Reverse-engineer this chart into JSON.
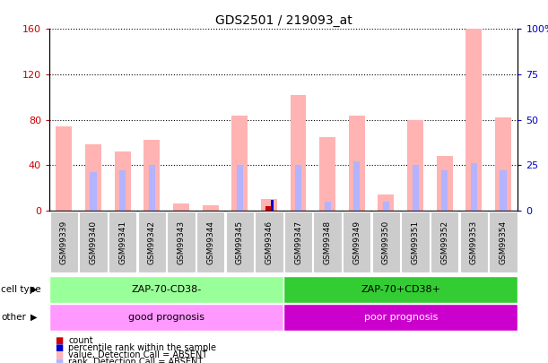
{
  "title": "GDS2501 / 219093_at",
  "samples": [
    "GSM99339",
    "GSM99340",
    "GSM99341",
    "GSM99342",
    "GSM99343",
    "GSM99344",
    "GSM99345",
    "GSM99346",
    "GSM99347",
    "GSM99348",
    "GSM99349",
    "GSM99350",
    "GSM99351",
    "GSM99352",
    "GSM99353",
    "GSM99354"
  ],
  "count_values": [
    0,
    0,
    0,
    0,
    0,
    0,
    0,
    4,
    0,
    0,
    0,
    0,
    0,
    0,
    0,
    0
  ],
  "rank_values_pct": [
    0,
    0,
    0,
    0,
    0,
    0,
    0,
    6,
    0,
    0,
    0,
    0,
    0,
    0,
    0,
    0
  ],
  "absent_values": [
    74,
    58,
    52,
    62,
    6,
    5,
    84,
    10,
    102,
    65,
    84,
    14,
    80,
    48,
    160,
    82
  ],
  "absent_rank_pct": [
    0,
    21,
    22,
    25,
    0,
    0,
    25,
    0,
    25,
    5,
    27,
    5,
    25,
    22,
    26,
    22
  ],
  "group1_count": 8,
  "group1_label": "ZAP-70-CD38-",
  "group2_label": "ZAP-70+CD38+",
  "other1_label": "good prognosis",
  "other2_label": "poor prognosis",
  "cell_type_label": "cell type",
  "other_label": "other",
  "ylim_left": [
    0,
    160
  ],
  "ylim_right": [
    0,
    100
  ],
  "yticks_left": [
    0,
    40,
    80,
    120,
    160
  ],
  "ytick_labels_left": [
    "0",
    "40",
    "80",
    "120",
    "160"
  ],
  "yticks_right": [
    0,
    25,
    50,
    75,
    100
  ],
  "ytick_labels_right": [
    "0",
    "25",
    "50",
    "75",
    "100%"
  ],
  "color_count": "#cc0000",
  "color_rank": "#0000cc",
  "color_absent_value": "#ffb3b3",
  "color_absent_rank": "#b3b3ff",
  "color_group1_bg": "#99ff99",
  "color_group2_bg": "#33cc33",
  "color_other1_bg": "#ff99ff",
  "color_other2_bg": "#cc00cc",
  "color_xticklabel_bg": "#cccccc",
  "legend_items": [
    {
      "color": "#cc0000",
      "label": "count"
    },
    {
      "color": "#0000cc",
      "label": "percentile rank within the sample"
    },
    {
      "color": "#ffb3b3",
      "label": "value, Detection Call = ABSENT"
    },
    {
      "color": "#b3b3ff",
      "label": "rank, Detection Call = ABSENT"
    }
  ]
}
